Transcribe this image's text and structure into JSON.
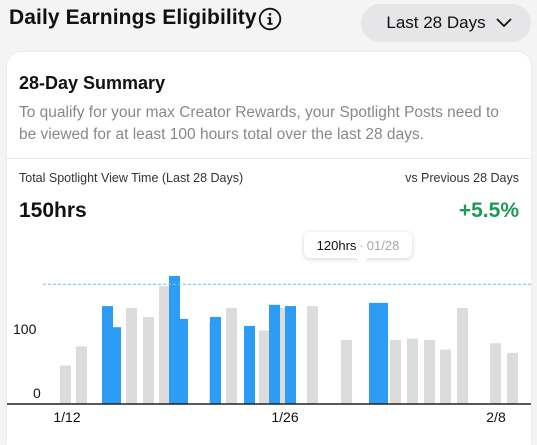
{
  "header": {
    "title": "Daily Earnings Eligibility",
    "info_icon": "info-circle-icon",
    "range_label": "Last 28 Days",
    "range_icon": "chevron-down-icon"
  },
  "summary": {
    "title": "28-Day Summary",
    "description": "To qualify for your max Creator Rewards, your Spotlight Posts need to be viewed for at least 100 hours total over the last 28 days."
  },
  "metric": {
    "label": "Total Spotlight View Time (Last 28 Days)",
    "value": "150hrs",
    "compare_label": "vs Previous 28 Days",
    "compare_value": "+5.5%",
    "compare_color": "#1e9a55"
  },
  "tooltip": {
    "value": "120hrs",
    "separator": " · ",
    "date": "01/28"
  },
  "colors": {
    "current": "#2d9cf4",
    "previous": "#dcdcdc",
    "reference_line": "#7fc6f0"
  },
  "chart_data": {
    "type": "bar",
    "x_tick_labels": [
      "1/12",
      "1/26",
      "2/8"
    ],
    "y_tick_labels": [
      "0",
      "100"
    ],
    "reference_value": 187,
    "series": [
      {
        "values": [
          60,
          90,
          150,
          136,
          184,
          128,
          150,
          115,
          150,
          153
        ]
      },
      {
        "values": [
          0,
          0,
          153,
          120,
          0,
          0,
          0,
          0,
          0,
          0,
          200,
          133,
          0,
          0,
          0,
          136,
          0,
          0,
          0,
          122,
          0,
          0,
          155,
          0,
          153,
          0,
          0,
          0,
          0,
          0,
          0,
          0,
          0,
          0,
          158,
          158,
          0,
          0
        ]
      }
    ]
  }
}
